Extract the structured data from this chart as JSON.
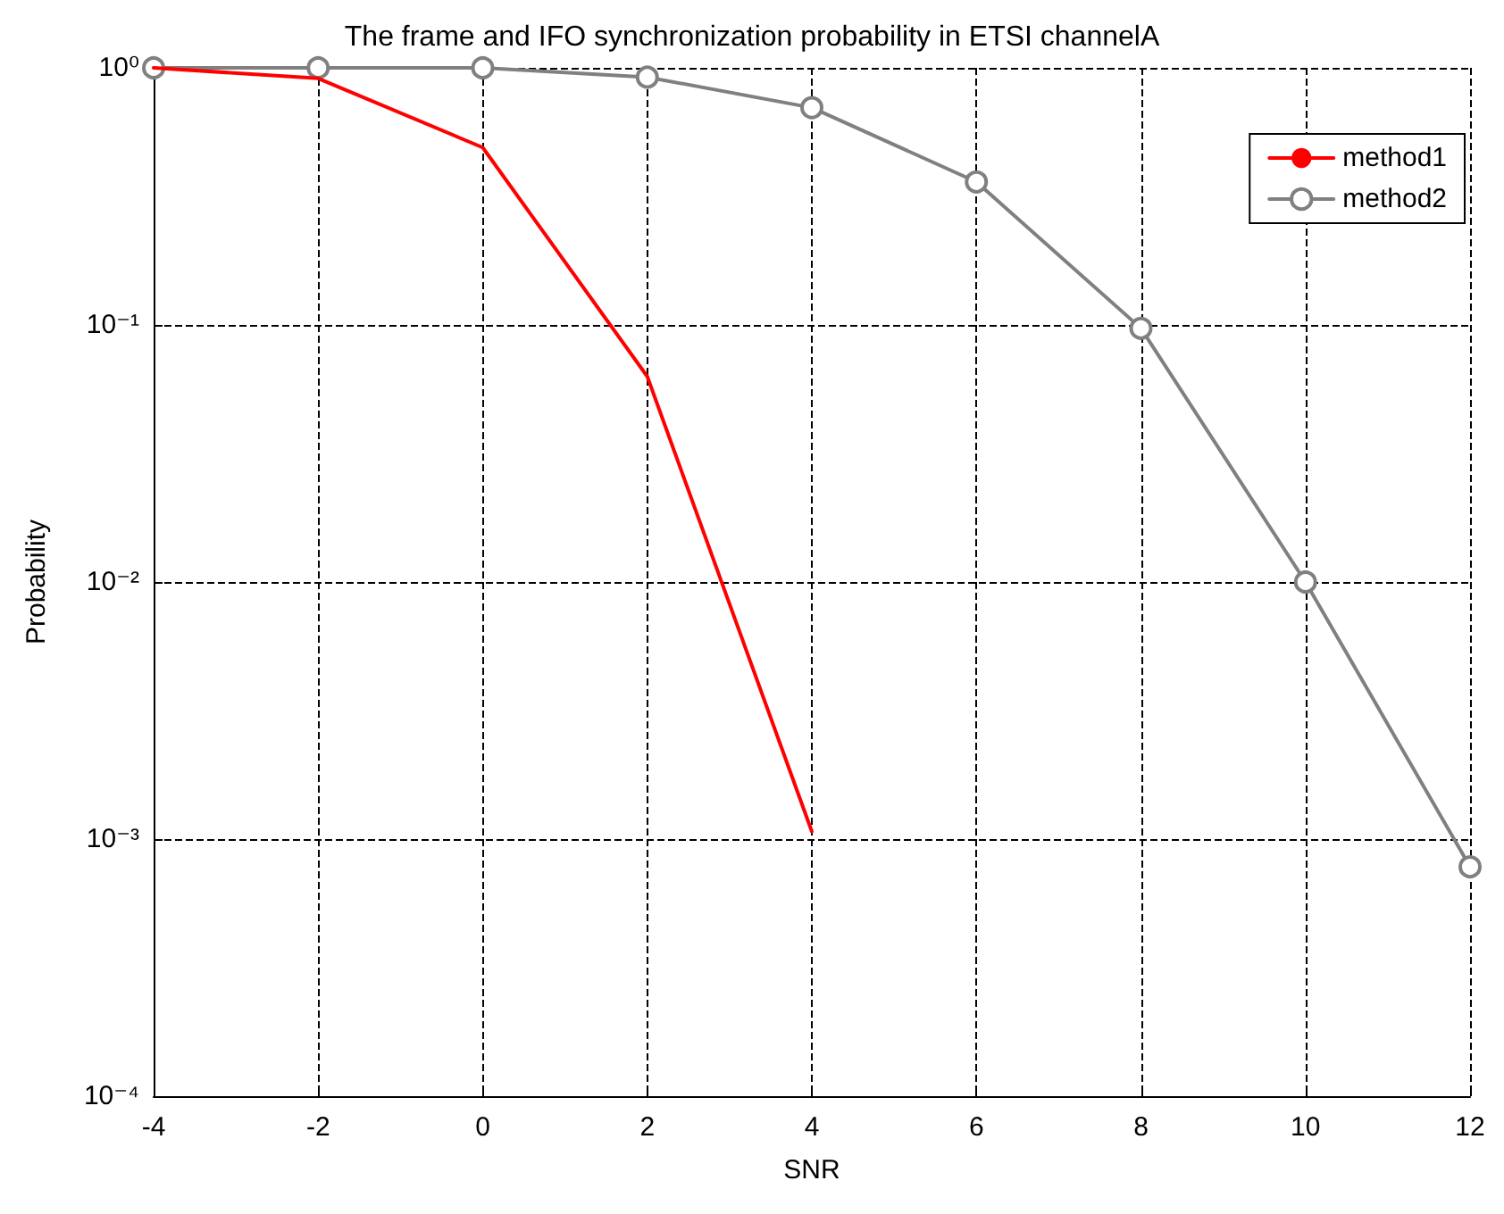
{
  "chart_data": {
    "type": "line",
    "title": "The frame and IFO synchronization probability in ETSI channelA",
    "xlabel": "SNR",
    "ylabel": "Probability",
    "x": [
      -4,
      -2,
      0,
      2,
      4,
      6,
      8,
      10,
      12
    ],
    "series": [
      {
        "name": "method1",
        "color": "#ff0000",
        "marker": "none",
        "values": [
          1,
          0.91,
          0.49,
          0.063,
          0.00107,
          null,
          null,
          null,
          null
        ]
      },
      {
        "name": "method2",
        "color": "#808080",
        "marker": "circle",
        "values": [
          1,
          1,
          1,
          0.92,
          0.7,
          0.36,
          0.097,
          0.01,
          0.00078
        ]
      }
    ],
    "log": "y",
    "xlim": [
      -4,
      12
    ],
    "xticks": [
      -4,
      -2,
      0,
      2,
      4,
      6,
      8,
      10,
      12
    ],
    "ylim": [
      0.0001,
      1
    ],
    "yticks": [
      {
        "value": 0.0001,
        "label": "10⁻⁴"
      },
      {
        "value": 0.001,
        "label": "10⁻³"
      },
      {
        "value": 0.01,
        "label": "10⁻²"
      },
      {
        "value": 0.1,
        "label": "10⁻¹"
      },
      {
        "value": 1,
        "label": "10⁰"
      }
    ],
    "grid": true,
    "legend": "top right",
    "line_style": "solid"
  }
}
